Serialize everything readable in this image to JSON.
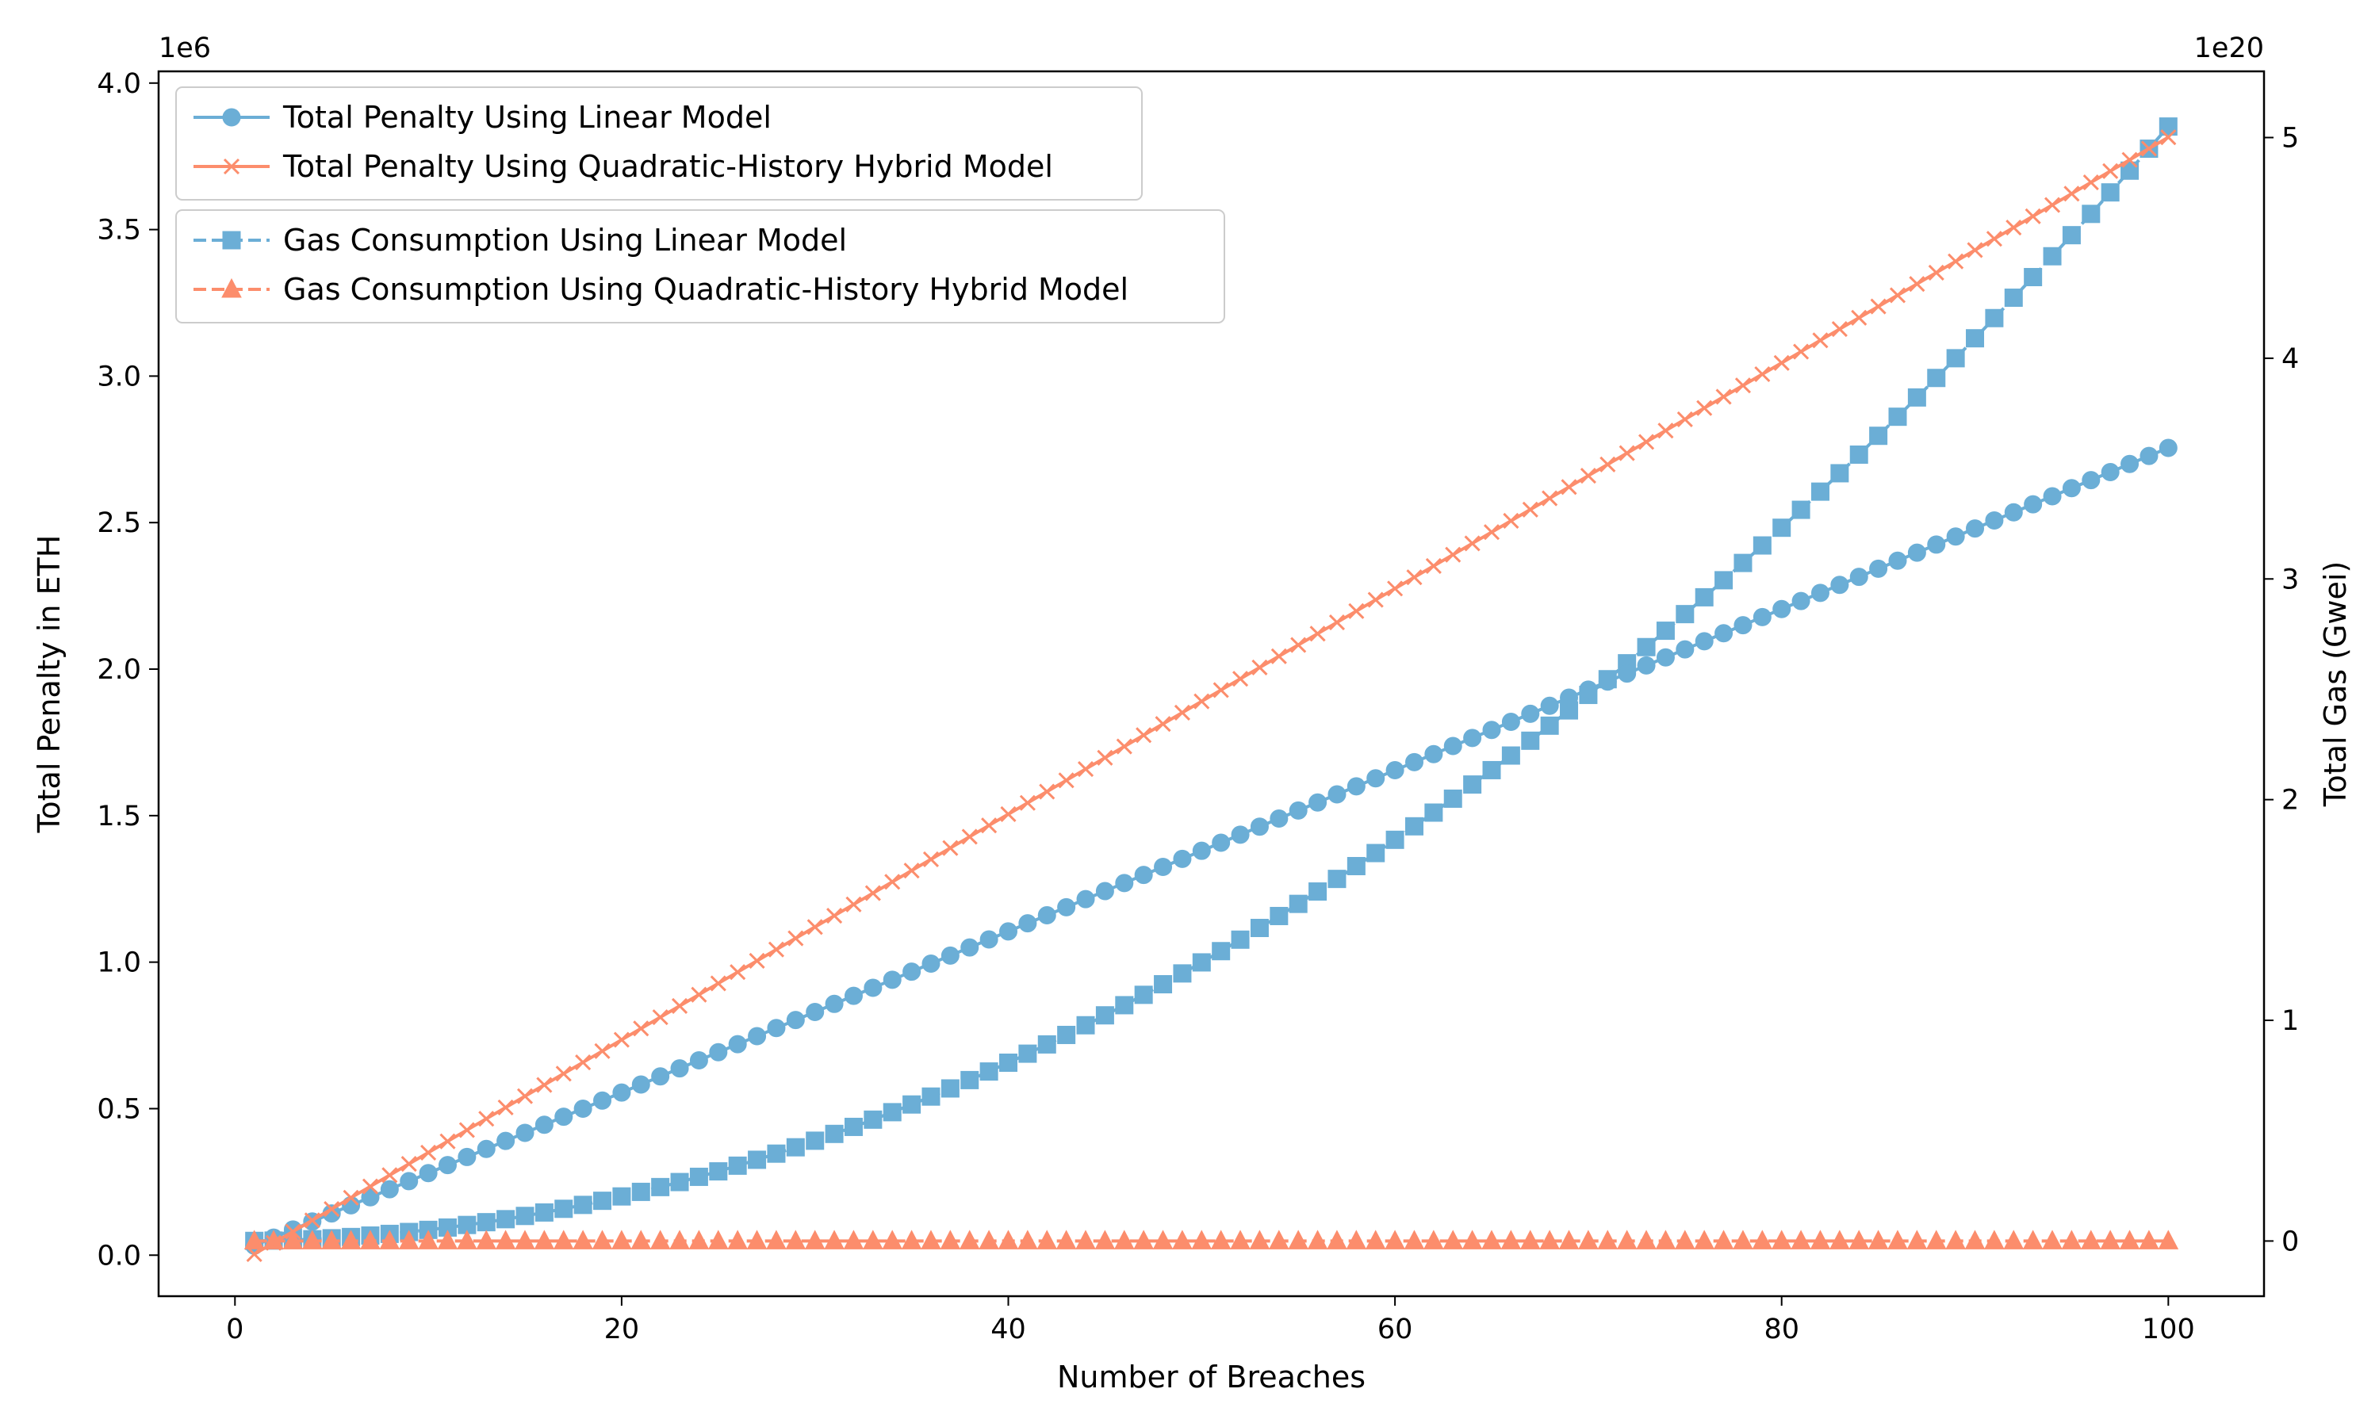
{
  "chart_data": {
    "type": "line",
    "xlabel": "Number of Breaches",
    "ylabel_left": "Total Penalty in ETH",
    "ylabel_right": "Total Gas (Gwei)",
    "left_axis_offset_label": "1e6",
    "right_axis_offset_label": "1e20",
    "xlim": [
      -3.95,
      104.95
    ],
    "ylim_left": [
      -0.14,
      4.04
    ],
    "ylim_right": [
      -0.25,
      5.3
    ],
    "x_ticks": [
      0,
      20,
      40,
      60,
      80,
      100
    ],
    "x_tick_labels": [
      "0",
      "20",
      "40",
      "60",
      "80",
      "100"
    ],
    "y_left_ticks": [
      0.0,
      0.5,
      1.0,
      1.5,
      2.0,
      2.5,
      3.0,
      3.5,
      4.0
    ],
    "y_left_tick_labels": [
      "0.0",
      "0.5",
      "1.0",
      "1.5",
      "2.0",
      "2.5",
      "3.0",
      "3.5",
      "4.0"
    ],
    "y_right_ticks": [
      0,
      1,
      2,
      3,
      4,
      5
    ],
    "y_right_tick_labels": [
      "0",
      "1",
      "2",
      "3",
      "4",
      "5"
    ],
    "x_range": {
      "start": 1,
      "end": 100,
      "step": 1
    },
    "grid": false,
    "colors": {
      "blue": "#6baed6",
      "orange": "#fc8d6c"
    },
    "series": [
      {
        "name": "Total Penalty Using Linear Model",
        "axis": "left",
        "marker": "circle",
        "linestyle": "solid",
        "color": "#6baed6",
        "formula": "y = 0.0275 * x + 0.005 (millions ETH)",
        "coef": {
          "a": 0.0275,
          "b": 0.005
        },
        "samples": [
          [
            1,
            0.033
          ],
          [
            20,
            0.555
          ],
          [
            40,
            1.105
          ],
          [
            60,
            1.655
          ],
          [
            80,
            2.205
          ],
          [
            100,
            2.755
          ]
        ]
      },
      {
        "name": "Total Penalty Using Quadratic-History Hybrid Model",
        "axis": "left",
        "marker": "x",
        "linestyle": "solid",
        "color": "#fc8d6c",
        "formula": "y = 0.0385 * x - 0.035 (millions ETH)",
        "coef": {
          "a": 0.0385,
          "b": -0.035
        },
        "samples": [
          [
            1,
            0.004
          ],
          [
            20,
            0.735
          ],
          [
            40,
            1.505
          ],
          [
            60,
            2.275
          ],
          [
            80,
            3.045
          ],
          [
            100,
            3.815
          ]
        ]
      },
      {
        "name": "Gas Consumption Using Linear Model",
        "axis": "right",
        "marker": "square",
        "linestyle": "dashed",
        "color": "#6baed6",
        "formula": "y = 5.05e-4 * x^2 (x 1e20 Gwei)",
        "coef": {
          "c": 0.000505
        },
        "samples": [
          [
            1,
            0.0005
          ],
          [
            20,
            0.202
          ],
          [
            40,
            0.808
          ],
          [
            60,
            1.818
          ],
          [
            80,
            3.232
          ],
          [
            100,
            5.05
          ]
        ]
      },
      {
        "name": "Gas Consumption Using Quadratic-History Hybrid Model",
        "axis": "right",
        "marker": "triangle",
        "linestyle": "dashed",
        "color": "#fc8d6c",
        "formula": "y = 0 (x 1e20 Gwei)",
        "coef": {
          "c": 0
        },
        "samples": [
          [
            1,
            0
          ],
          [
            50,
            0
          ],
          [
            100,
            0
          ]
        ]
      }
    ],
    "legends": [
      {
        "location": "upper-left",
        "entries": [
          0,
          1
        ]
      },
      {
        "location": "upper-left-below",
        "entries": [
          2,
          3
        ]
      }
    ]
  }
}
